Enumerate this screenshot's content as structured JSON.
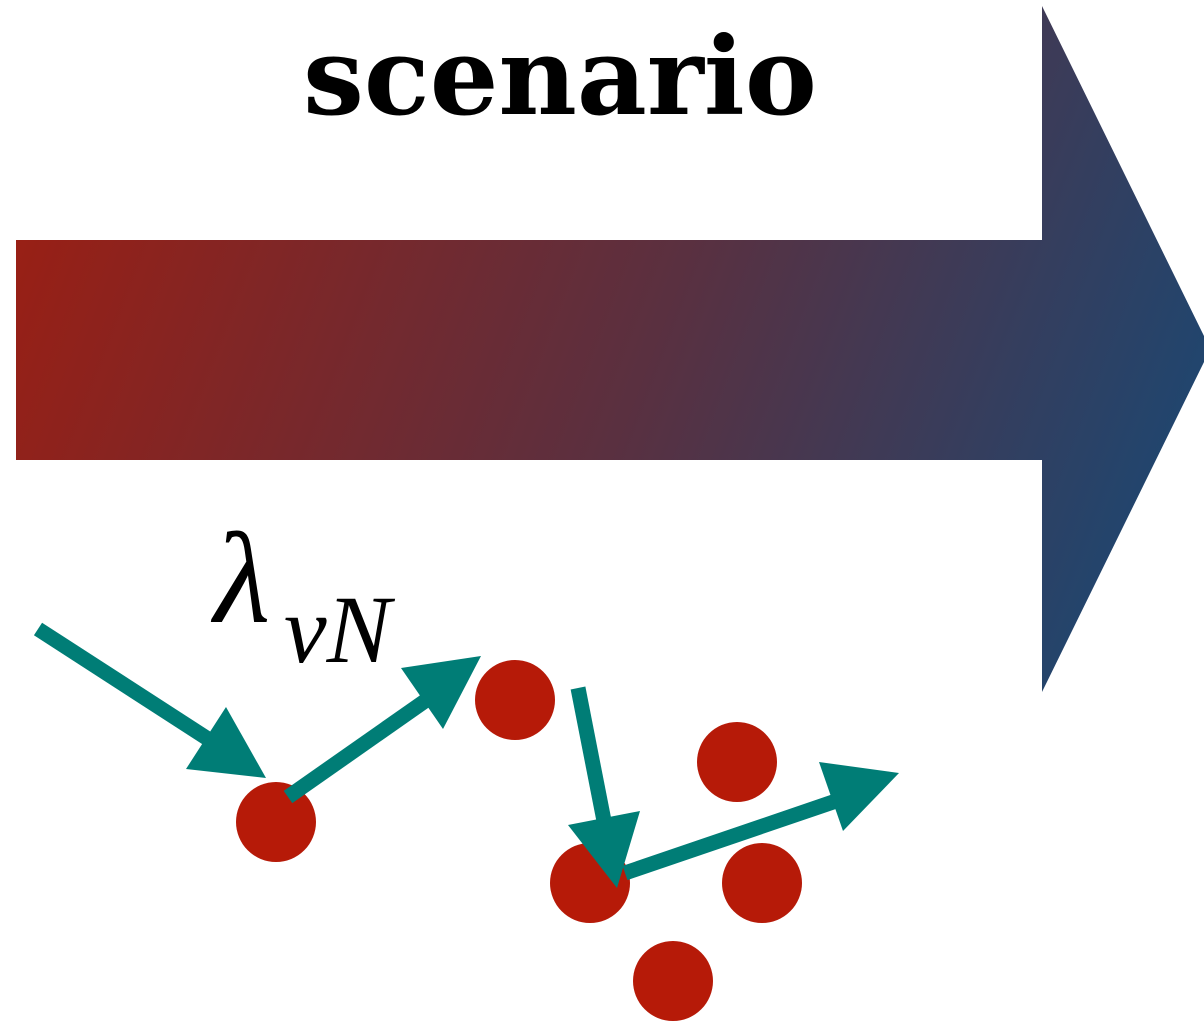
{
  "title": "scenario",
  "interaction_label": {
    "symbol": "λ",
    "subscript": "νN"
  },
  "colors": {
    "arrow_gradient_start": "#9a1f14",
    "arrow_gradient_end": "#144a78",
    "particle": "#b61a08",
    "track": "#007d76",
    "text": "#000000"
  }
}
